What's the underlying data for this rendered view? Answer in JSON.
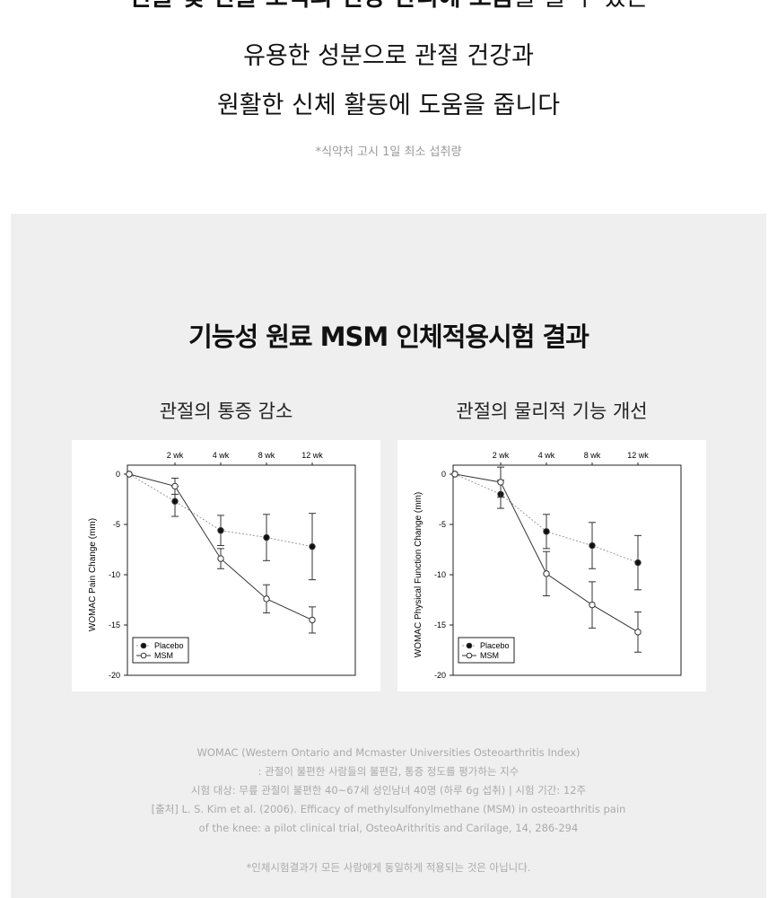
{
  "intro": {
    "line0_bold": "연골 및 연골 조직의 건강 관리에 도움",
    "line0_rest": "을 줄 수 있는",
    "line1": "유용한 성분으로 관절 건강과",
    "line2": "원활한 신체 활동에 도움을 줍니다",
    "note": "*식약처 고시 1일 최소 섭취량"
  },
  "section": {
    "title": "기능성 원료 MSM 인체적용시험 결과"
  },
  "chart_data": [
    {
      "type": "line",
      "subtitle": "관절의 통증 감소",
      "categories": [
        "0",
        "2 wk",
        "4 wk",
        "8 wk",
        "12 wk"
      ],
      "tick_labels": [
        "",
        "2 wk",
        "4 wk",
        "8 wk",
        "12 wk"
      ],
      "ylabel": "WOMAC Pain Change (mm)",
      "ylim": [
        -20,
        0
      ],
      "yticks": [
        0,
        -5,
        -10,
        -15,
        -20
      ],
      "legend": "bottom-left",
      "series": [
        {
          "name": "Placebo",
          "style": "dotted, filled marker",
          "values": [
            0,
            -2.7,
            -5.6,
            -6.3,
            -7.2
          ],
          "errors": [
            0,
            1.5,
            1.5,
            2.3,
            3.3
          ]
        },
        {
          "name": "MSM",
          "style": "solid, open marker",
          "values": [
            0,
            -1.2,
            -8.4,
            -12.4,
            -14.5
          ],
          "errors": [
            0,
            0.8,
            1.0,
            1.4,
            1.3
          ]
        }
      ]
    },
    {
      "type": "line",
      "subtitle": "관절의 물리적 기능 개선",
      "categories": [
        "0",
        "2 wk",
        "4 wk",
        "8 wk",
        "12 wk"
      ],
      "tick_labels": [
        "",
        "2 wk",
        "4 wk",
        "8 wk",
        "12 wk"
      ],
      "ylabel": "WOMAC Physical Function Change (mm)",
      "ylim": [
        -20,
        0
      ],
      "yticks": [
        0,
        -5,
        -10,
        -15,
        -20
      ],
      "legend": "bottom-left",
      "series": [
        {
          "name": "Placebo",
          "style": "dotted, filled marker",
          "values": [
            0,
            -2.0,
            -5.7,
            -7.1,
            -8.8
          ],
          "errors": [
            0,
            1.4,
            1.7,
            2.3,
            2.7
          ]
        },
        {
          "name": "MSM",
          "style": "solid, open marker",
          "values": [
            0,
            -0.8,
            -9.9,
            -13.0,
            -15.7
          ],
          "errors": [
            0,
            1.5,
            2.2,
            2.3,
            2.0
          ]
        }
      ]
    }
  ],
  "footnotes": [
    "WOMAC (Western Ontario and Mcmaster Universities Osteoarthritis Index)",
    ": 관절이 불편한 사람들의 불편감, 통증 정도를 평가하는 지수",
    "시험 대상: 무릎 관절이 불편한 40~67세 성인남녀 40명 (하루 6g 섭취) | 시험 기간: 12주",
    "[출처] L. S. Kim et al. (2006). Efficacy of methylsulfonylmethane (MSM) in osteoarthritis pain",
    "of the knee: a pilot clinical trial, OsteoArithritis and Carilage, 14, 286-294"
  ],
  "disclaimer": "*인체시험결과가 모든 사람에게 동일하게 적용되는 것은 아닙니다.",
  "colors": {
    "background": "#efefef",
    "text": "#111111",
    "muted": "#aaaaaa"
  }
}
